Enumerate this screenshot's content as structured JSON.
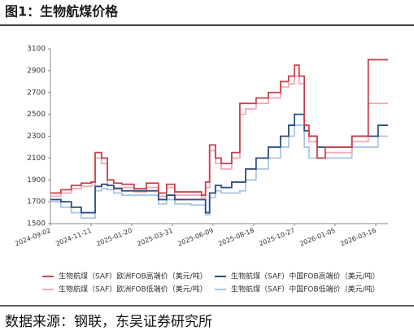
{
  "chart_data": {
    "type": "line",
    "step": true,
    "title": "图1：生物航煤价格",
    "source": "数据来源：钢联，东吴证券研究所",
    "x": [
      "2024-09-02",
      "2024-09-20",
      "2024-10-08",
      "2024-10-25",
      "2024-11-11",
      "2024-11-18",
      "2024-11-29",
      "2024-12-09",
      "2024-12-20",
      "2025-01-03",
      "2025-01-24",
      "2025-02-14",
      "2025-03-07",
      "2025-03-21",
      "2025-04-04",
      "2025-05-02",
      "2025-05-20",
      "2025-05-27",
      "2025-06-03",
      "2025-06-13",
      "2025-06-23",
      "2025-07-11",
      "2025-07-25",
      "2025-08-04",
      "2025-08-22",
      "2025-09-12",
      "2025-10-03",
      "2025-10-17",
      "2025-10-27",
      "2025-11-04",
      "2025-11-13",
      "2025-11-21",
      "2025-12-05",
      "2025-12-19",
      "2026-01-16",
      "2026-02-03",
      "2026-02-20",
      "2026-03-03",
      "2026-03-20",
      "2026-04-06"
    ],
    "series": [
      {
        "name": "生物航煤（SAF）欧洲FOB高端价（美元/吨）",
        "color": "#c8414b",
        "values": [
          1780,
          1810,
          1850,
          1870,
          1880,
          2150,
          2100,
          1900,
          1870,
          1860,
          1820,
          1870,
          1780,
          1860,
          1790,
          1790,
          1760,
          1880,
          2220,
          2100,
          2050,
          2150,
          2600,
          2600,
          2650,
          2700,
          2800,
          2850,
          2950,
          2850,
          2400,
          2300,
          2100,
          2200,
          2200,
          2300,
          2300,
          3000,
          3000,
          3000
        ]
      },
      {
        "name": "生物航煤（SAF）中国FOB高端价（美元/吨）",
        "color": "#2b4d80",
        "values": [
          1720,
          1700,
          1650,
          1600,
          1600,
          1840,
          1860,
          1850,
          1820,
          1800,
          1800,
          1800,
          1720,
          1760,
          1720,
          1720,
          1720,
          1600,
          1780,
          1850,
          1830,
          1880,
          1880,
          2000,
          2100,
          2200,
          2300,
          2400,
          2500,
          2500,
          2350,
          2300,
          2200,
          2200,
          2200,
          2300,
          2300,
          2300,
          2400,
          2400
        ]
      },
      {
        "name": "生物航煤（SAF）欧洲FOB低端价（美元/吨）",
        "color": "#f2a9b4",
        "values": [
          1750,
          1780,
          1820,
          1840,
          1850,
          2100,
          2050,
          1850,
          1830,
          1830,
          1790,
          1830,
          1750,
          1830,
          1760,
          1760,
          1740,
          1830,
          2170,
          2050,
          2000,
          2100,
          2500,
          2550,
          2600,
          2650,
          2750,
          2780,
          2850,
          2780,
          2350,
          2250,
          2100,
          2150,
          2150,
          2250,
          2250,
          2600,
          2600,
          2600
        ]
      },
      {
        "name": "生物航煤（SAF）中国FOB低端价（美元/吨）",
        "color": "#a9c5e3",
        "values": [
          1700,
          1650,
          1600,
          1550,
          1550,
          1800,
          1820,
          1810,
          1780,
          1760,
          1760,
          1760,
          1680,
          1720,
          1680,
          1670,
          1670,
          1580,
          1740,
          1800,
          1780,
          1780,
          1800,
          1900,
          2000,
          2100,
          2200,
          2300,
          2400,
          2400,
          2200,
          2100,
          2100,
          2100,
          2100,
          2200,
          2200,
          2200,
          2300,
          2300
        ]
      }
    ],
    "xlim": [
      "2024-09-02",
      "2026-04-06"
    ],
    "xticks": [
      "2024-09-02",
      "2024-11-11",
      "2025-01-20",
      "2025-03-31",
      "2025-06-09",
      "2025-08-18",
      "2025-10-27",
      "2026-01-05",
      "2026-03-16"
    ],
    "ylim": [
      1500,
      3100
    ],
    "yticks": [
      1500,
      1700,
      1900,
      2100,
      2300,
      2500,
      2700,
      2900,
      3100
    ]
  }
}
